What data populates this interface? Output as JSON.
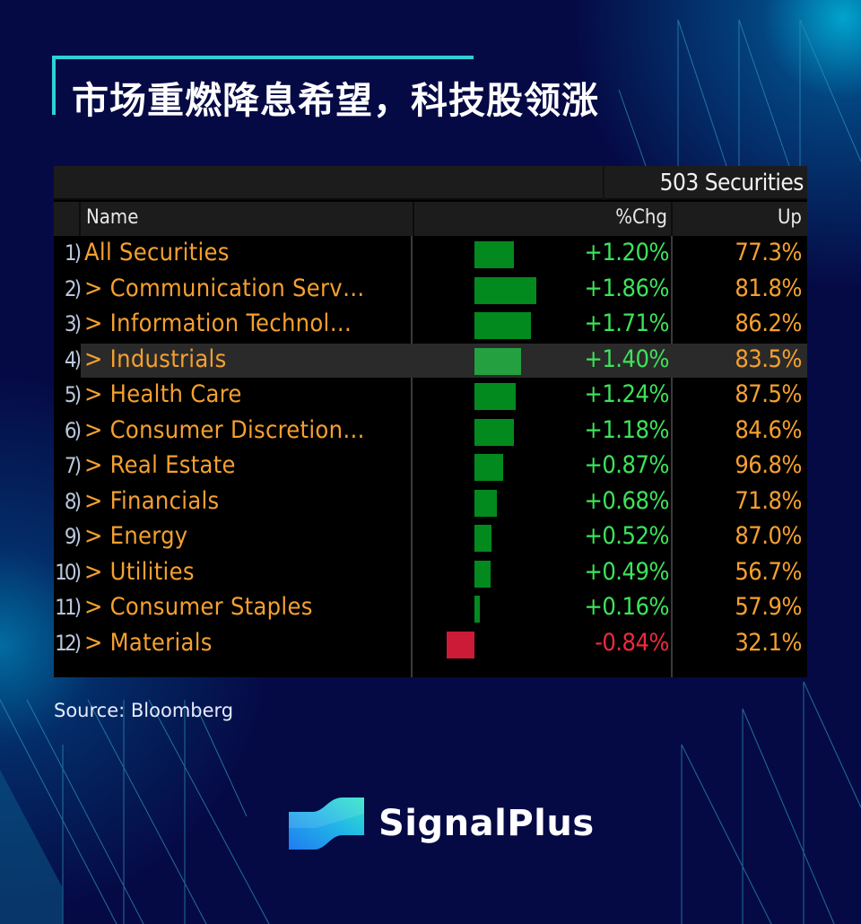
{
  "header": {
    "title": "市场重燃降息希望，科技股领涨",
    "accent_color": "#2fd1d8"
  },
  "terminal": {
    "securities_count": "503 Securities",
    "columns": {
      "name": "Name",
      "chg": "%Chg",
      "up": "Up"
    },
    "highlighted_row": 4,
    "rows": [
      {
        "idx": "1)",
        "name": "All Securities",
        "chg": "+1.20%",
        "up": "77.3%",
        "value": 1.2
      },
      {
        "idx": "2)",
        "name": "> Communication Serv…",
        "chg": "+1.86%",
        "up": "81.8%",
        "value": 1.86
      },
      {
        "idx": "3)",
        "name": "> Information Technol…",
        "chg": "+1.71%",
        "up": "86.2%",
        "value": 1.71
      },
      {
        "idx": "4)",
        "name": "> Industrials",
        "chg": "+1.40%",
        "up": "83.5%",
        "value": 1.4
      },
      {
        "idx": "5)",
        "name": "> Health Care",
        "chg": "+1.24%",
        "up": "87.5%",
        "value": 1.24
      },
      {
        "idx": "6)",
        "name": "> Consumer Discretion…",
        "chg": "+1.18%",
        "up": "84.6%",
        "value": 1.18
      },
      {
        "idx": "7)",
        "name": "> Real Estate",
        "chg": "+0.87%",
        "up": "96.8%",
        "value": 0.87
      },
      {
        "idx": "8)",
        "name": "> Financials",
        "chg": "+0.68%",
        "up": "71.8%",
        "value": 0.68
      },
      {
        "idx": "9)",
        "name": "> Energy",
        "chg": "+0.52%",
        "up": "87.0%",
        "value": 0.52
      },
      {
        "idx": "10)",
        "name": "> Utilities",
        "chg": "+0.49%",
        "up": "56.7%",
        "value": 0.49
      },
      {
        "idx": "11)",
        "name": "> Consumer Staples",
        "chg": "+0.16%",
        "up": "57.9%",
        "value": 0.16
      },
      {
        "idx": "12)",
        "name": "> Materials",
        "chg": "-0.84%",
        "up": "32.1%",
        "value": -0.84
      }
    ],
    "colors": {
      "positive_bar": "#038a1e",
      "negative_bar": "#cc1b36",
      "positive_text": "#3de35a",
      "negative_text": "#ee2a3c",
      "label_text": "#f5a030"
    }
  },
  "footer": {
    "source": "Source: Bloomberg",
    "brand_name": "SignalPlus"
  },
  "chart_data": {
    "type": "table",
    "title": "市场重燃降息希望，科技股领涨",
    "subtitle": "503 Securities",
    "columns": [
      "Name",
      "%Chg",
      "Up"
    ],
    "categories": [
      "All Securities",
      "Communication Services",
      "Information Technology",
      "Industrials",
      "Health Care",
      "Consumer Discretionary",
      "Real Estate",
      "Financials",
      "Energy",
      "Utilities",
      "Consumer Staples",
      "Materials"
    ],
    "series": [
      {
        "name": "%Chg",
        "values": [
          1.2,
          1.86,
          1.71,
          1.4,
          1.24,
          1.18,
          0.87,
          0.68,
          0.52,
          0.49,
          0.16,
          -0.84
        ]
      },
      {
        "name": "Up (%)",
        "values": [
          77.3,
          81.8,
          86.2,
          83.5,
          87.5,
          84.6,
          96.8,
          71.8,
          87.0,
          56.7,
          57.9,
          32.1
        ]
      }
    ],
    "inline_bars": "horizontal bars proportional to %Chg, green positive / red negative, zero line shared",
    "source": "Bloomberg"
  }
}
